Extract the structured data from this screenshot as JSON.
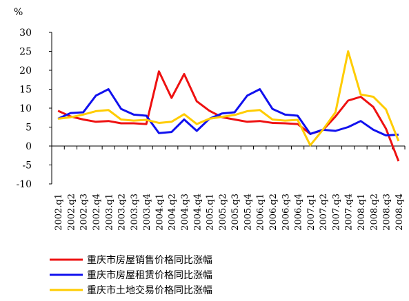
{
  "chart_data": {
    "type": "line",
    "y_label": "%",
    "categories": [
      "2002.q1",
      "2002.q2",
      "2002.q3",
      "2002.q4",
      "2003.q1",
      "2003.q2",
      "2003.q3",
      "2003.q4",
      "2004.q1",
      "2004.q2",
      "2004.q3",
      "2004.q4",
      "2005.q1",
      "2005.q2",
      "2005.q3",
      "2005.q4",
      "2006.q1",
      "2006.q2",
      "2006.q3",
      "2006.q4",
      "2007.q1",
      "2007.q2",
      "2007.q3",
      "2007.q4",
      "2008.q1",
      "2008.q2",
      "2008.q3",
      "2008.q4"
    ],
    "series": [
      {
        "name": "重庆市房屋销售价格同比涨幅",
        "color": "#ee1111",
        "values": [
          9.3,
          7.8,
          7.0,
          6.4,
          6.6,
          6.0,
          6.0,
          5.8,
          19.7,
          12.7,
          19.0,
          11.8,
          9.3,
          7.6,
          7.0,
          6.4,
          6.6,
          6.1,
          6.0,
          5.8,
          3.2,
          4.2,
          7.8,
          12.0,
          13.0,
          10.3,
          4.6,
          -4.0
        ]
      },
      {
        "name": "重庆市房屋租赁价格同比涨幅",
        "color": "#1111ee",
        "values": [
          7.2,
          8.7,
          8.9,
          13.3,
          15.0,
          9.8,
          8.3,
          8.0,
          3.4,
          3.7,
          7.0,
          4.0,
          7.2,
          8.6,
          8.9,
          13.3,
          15.0,
          9.8,
          8.3,
          8.0,
          3.2,
          4.3,
          4.0,
          5.0,
          6.6,
          4.3,
          2.8,
          3.0
        ]
      },
      {
        "name": "重庆市土地交易价格同比涨幅",
        "color": "#ffcc00",
        "values": [
          7.2,
          7.6,
          8.3,
          9.2,
          9.5,
          7.0,
          6.7,
          6.9,
          6.1,
          6.4,
          8.4,
          5.8,
          7.2,
          7.7,
          8.2,
          9.2,
          9.5,
          7.0,
          6.7,
          6.9,
          0.2,
          4.3,
          8.9,
          25.0,
          13.6,
          13.0,
          9.7,
          1.3
        ]
      }
    ],
    "ylim": [
      -10,
      30
    ],
    "yticks": [
      -10,
      -5,
      0,
      5,
      10,
      15,
      20,
      25,
      30
    ],
    "grid": false
  }
}
